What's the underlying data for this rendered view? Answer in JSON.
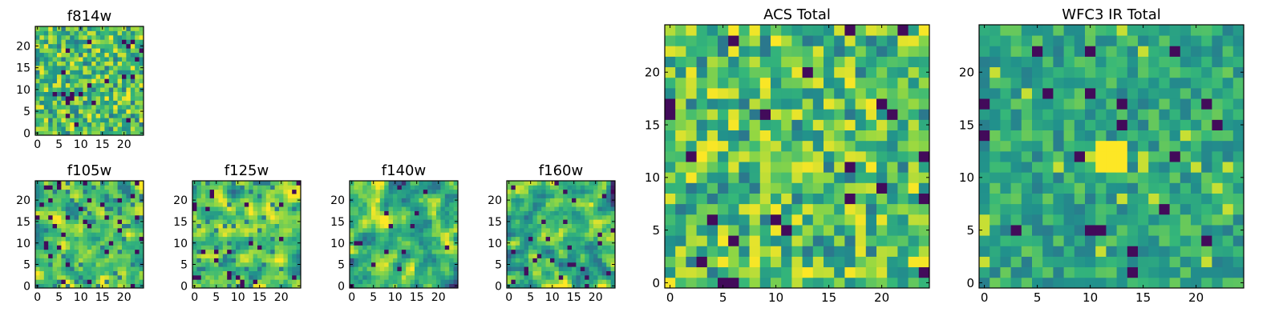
{
  "figure": {
    "colormap": [
      "#440154",
      "#31688e",
      "#21918c",
      "#35b779",
      "#90d743",
      "#fde725"
    ],
    "background": "#ffffff"
  },
  "chart_data": [
    {
      "type": "heatmap",
      "title": "f814w",
      "grid_size": [
        25,
        25
      ],
      "xticks": [
        0,
        5,
        10,
        15,
        20
      ],
      "yticks": [
        0,
        5,
        10,
        15,
        20
      ],
      "xlim": [
        -0.5,
        24.5
      ],
      "ylim": [
        -0.5,
        24.5
      ],
      "seed": 11,
      "distribution": "noisy-bright",
      "smoothing": 0
    },
    {
      "type": "heatmap",
      "title": "f105w",
      "grid_size": [
        25,
        25
      ],
      "xticks": [
        0,
        5,
        10,
        15,
        20
      ],
      "yticks": [
        0,
        5,
        10,
        15,
        20
      ],
      "xlim": [
        -0.5,
        24.5
      ],
      "ylim": [
        -0.5,
        24.5
      ],
      "seed": 23,
      "distribution": "smooth-bright",
      "smoothing": 1
    },
    {
      "type": "heatmap",
      "title": "f125w",
      "grid_size": [
        25,
        25
      ],
      "xticks": [
        0,
        5,
        10,
        15,
        20
      ],
      "yticks": [
        0,
        5,
        10,
        15,
        20
      ],
      "xlim": [
        -0.5,
        24.5
      ],
      "ylim": [
        -0.5,
        24.5
      ],
      "seed": 37,
      "distribution": "smooth-bright",
      "smoothing": 1
    },
    {
      "type": "heatmap",
      "title": "f140w",
      "grid_size": [
        25,
        25
      ],
      "xticks": [
        0,
        5,
        10,
        15,
        20
      ],
      "yticks": [
        0,
        5,
        10,
        15,
        20
      ],
      "xlim": [
        -0.5,
        24.5
      ],
      "ylim": [
        -0.5,
        24.5
      ],
      "seed": 41,
      "distribution": "smooth-mixed",
      "smoothing": 1
    },
    {
      "type": "heatmap",
      "title": "f160w",
      "grid_size": [
        25,
        25
      ],
      "xticks": [
        0,
        5,
        10,
        15,
        20
      ],
      "yticks": [
        0,
        5,
        10,
        15,
        20
      ],
      "xlim": [
        -0.5,
        24.5
      ],
      "ylim": [
        -0.5,
        24.5
      ],
      "seed": 53,
      "distribution": "smooth-mixed",
      "smoothing": 1
    },
    {
      "type": "heatmap",
      "title": "ACS Total",
      "grid_size": [
        25,
        25
      ],
      "xticks": [
        0,
        5,
        10,
        15,
        20
      ],
      "yticks": [
        0,
        5,
        10,
        15,
        20
      ],
      "xlim": [
        -0.5,
        24.5
      ],
      "ylim": [
        -0.5,
        24.5
      ],
      "seed": 67,
      "distribution": "noisy-bright",
      "smoothing": 0
    },
    {
      "type": "heatmap",
      "title": "WFC3 IR Total",
      "grid_size": [
        25,
        25
      ],
      "xticks": [
        0,
        5,
        10,
        15,
        20
      ],
      "yticks": [
        0,
        5,
        10,
        15,
        20
      ],
      "xlim": [
        -0.5,
        24.5
      ],
      "ylim": [
        -0.5,
        24.5
      ],
      "seed": 79,
      "distribution": "noisy-teal",
      "smoothing": 0,
      "hotspot": {
        "x": [
          11,
          13
        ],
        "y": [
          11,
          13
        ]
      }
    }
  ]
}
